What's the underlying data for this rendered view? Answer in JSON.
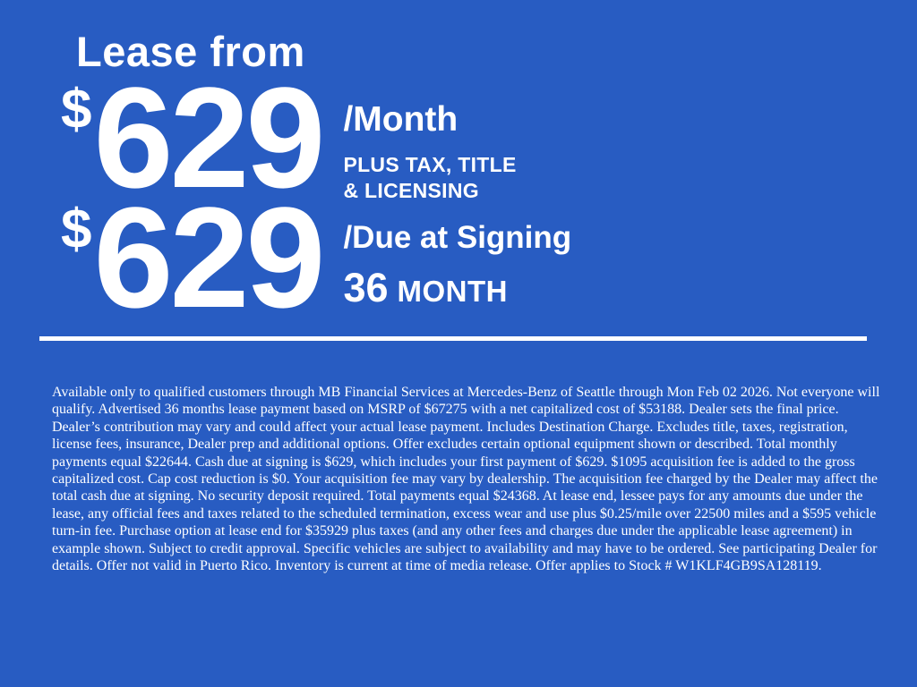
{
  "theme": {
    "background_color": "#285CC2",
    "text_color": "#FFFFFF"
  },
  "offer": {
    "title": "Lease from",
    "monthly": {
      "currency": "$",
      "amount": "629",
      "per": "/Month",
      "note_line1": "PLUS TAX, TITLE",
      "note_line2": "& LICENSING"
    },
    "due_at_signing": {
      "currency": "$",
      "amount": "629",
      "per": "/Due at Signing",
      "term_number": "36",
      "term_unit": "MONTH"
    }
  },
  "disclaimer": {
    "text": "Available only to qualified customers through MB Financial Services at Mercedes-Benz of Seattle through Mon Feb 02 2026. Not everyone will qualify. Advertised 36 months lease payment based on MSRP of $67275 with a net capitalized cost of $53188. Dealer sets the final price. Dealer’s contribution may vary and could affect your actual lease payment. Includes Destination Charge. Excludes title, taxes, registration, license fees, insurance, Dealer prep and additional options. Offer excludes certain optional equipment shown or described. Total monthly payments equal $22644. Cash due at signing is $629, which includes your first payment of $629. $1095 acquisition fee is added to the gross capitalized cost. Cap cost reduction is $0. Your acquisition fee may vary by dealership. The acquisition fee charged by the Dealer may affect the total cash due at signing. No security deposit required. Total payments equal $24368. At lease end, lessee pays for any amounts due under the lease, any official fees and taxes related to the scheduled termination, excess wear and use plus $0.25/mile over 22500 miles and a $595 vehicle turn-in fee. Purchase option at lease end for $35929 plus taxes (and any other fees and charges due under the applicable lease agreement) in example shown. Subject to credit approval. Specific vehicles are subject to availability and may have to be ordered. See participating Dealer for details. Offer not valid in Puerto Rico. Inventory is current at time of media release. Offer applies to Stock # W1KLF4GB9SA128119."
  }
}
